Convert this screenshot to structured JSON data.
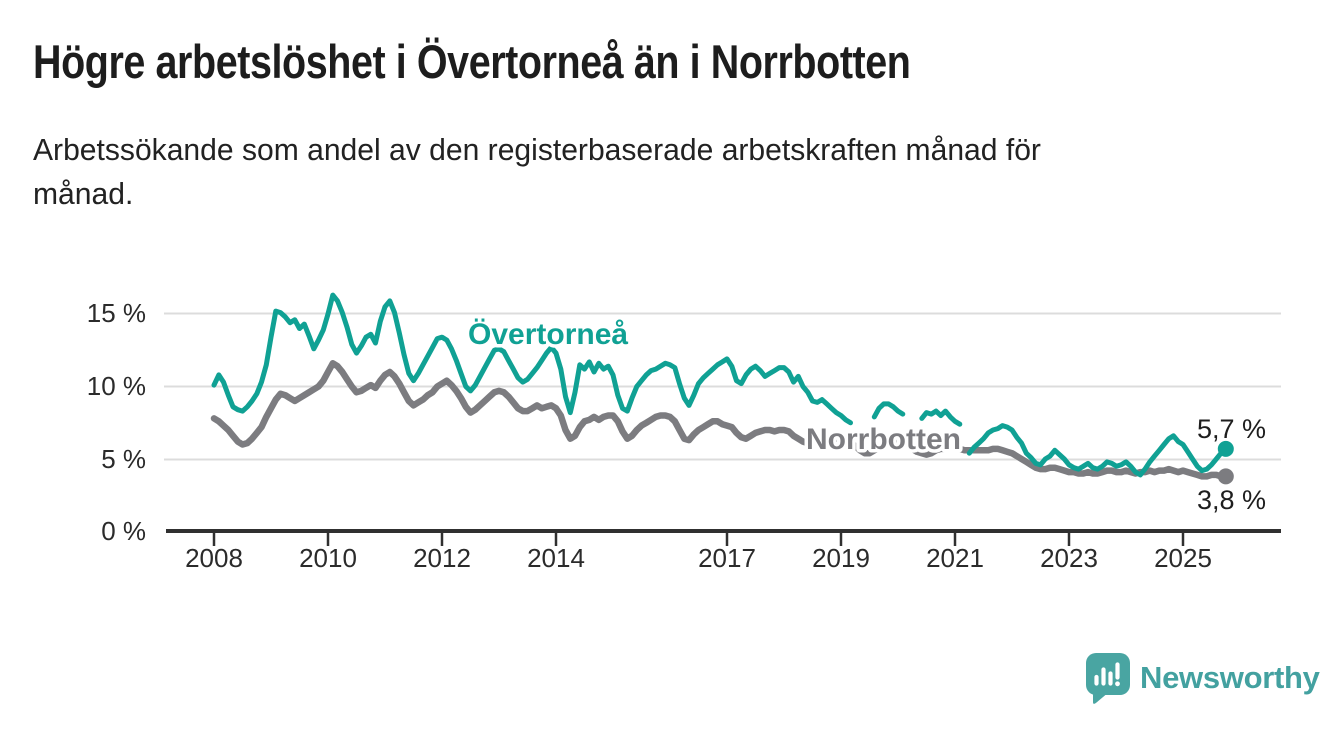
{
  "header": {
    "title": "Högre arbetslöshet i Övertorneå än i Norrbotten",
    "subtitle_line1": "Arbetssökande som andel av den registerbaserade arbetskraften månad för",
    "subtitle_line2": "månad."
  },
  "footer": {
    "brand": "Newsworthy",
    "brand_color": "#43a1a0",
    "logo_bubble_color": "#49a5a2"
  },
  "chart_data": {
    "type": "line",
    "title": "Högre arbetslöshet i Övertorneå än i Norrbotten",
    "subtitle": "Arbetssökande som andel av den registerbaserade arbetskraften månad för månad.",
    "unit": "%",
    "frequency": "monthly",
    "x_start": "2008-01",
    "x_end": "2025-10",
    "ylim": [
      0,
      17
    ],
    "grid": "horizontal",
    "y_tick_labels": [
      "15 %",
      "10 %",
      "5 %",
      "0 %"
    ],
    "x_tick_labels": [
      "2008",
      "2010",
      "2012",
      "2014",
      "2017",
      "2019",
      "2021",
      "2023",
      "2025"
    ],
    "series": [
      {
        "name": "Övertorneå",
        "color": "#10a194",
        "end_label": "5,7 %",
        "end_value": 5.7,
        "values": [
          10.1,
          10.8,
          10.3,
          9.4,
          8.6,
          8.4,
          8.3,
          8.6,
          9.0,
          9.5,
          10.3,
          11.5,
          13.4,
          15.2,
          15.1,
          14.8,
          14.4,
          14.6,
          14.0,
          14.3,
          13.5,
          12.6,
          13.2,
          13.9,
          15.0,
          16.3,
          15.9,
          15.1,
          14.1,
          12.9,
          12.3,
          12.8,
          13.4,
          13.6,
          13.0,
          14.5,
          15.5,
          15.9,
          15.1,
          13.7,
          12.2,
          10.9,
          10.4,
          10.9,
          11.5,
          12.1,
          12.7,
          13.3,
          13.4,
          13.2,
          12.6,
          11.8,
          10.9,
          10.0,
          9.7,
          10.1,
          10.7,
          11.3,
          11.9,
          12.5,
          12.6,
          12.4,
          11.8,
          11.2,
          10.6,
          10.3,
          10.5,
          10.9,
          11.3,
          11.8,
          12.3,
          12.7,
          12.3,
          11.2,
          9.3,
          8.2,
          9.6,
          11.5,
          11.2,
          11.7,
          11.0,
          11.6,
          11.2,
          11.4,
          10.8,
          9.4,
          8.5,
          8.3,
          9.2,
          10.0,
          10.4,
          10.8,
          11.1,
          11.2,
          11.4,
          11.6,
          11.5,
          11.3,
          10.2,
          9.2,
          8.7,
          9.4,
          10.2,
          10.6,
          10.9,
          11.2,
          11.5,
          11.7,
          11.9,
          11.4,
          10.4,
          10.2,
          10.8,
          11.2,
          11.4,
          11.1,
          10.7,
          10.9,
          11.1,
          11.3,
          11.3,
          11.0,
          10.3,
          10.7,
          10.0,
          9.6,
          9.0,
          8.9,
          9.1,
          8.8,
          8.5,
          8.2,
          8.0,
          7.7,
          7.5,
          null,
          null,
          null,
          null,
          7.9,
          8.5,
          8.8,
          8.8,
          8.6,
          8.3,
          8.1,
          null,
          null,
          null,
          7.8,
          8.2,
          8.1,
          8.3,
          8.0,
          8.3,
          7.9,
          7.6,
          7.4,
          null,
          5.4,
          5.8,
          6.1,
          6.4,
          6.8,
          7.0,
          7.1,
          7.3,
          7.2,
          7.0,
          6.5,
          6.1,
          5.4,
          5.1,
          4.7,
          4.6,
          5.0,
          5.2,
          5.6,
          5.3,
          5.0,
          4.6,
          4.4,
          4.3,
          4.5,
          4.7,
          4.4,
          4.3,
          4.5,
          4.8,
          4.7,
          4.5,
          4.6,
          4.8,
          4.5,
          4.1,
          3.9,
          4.3,
          4.8,
          5.2,
          5.6,
          6.0,
          6.4,
          6.6,
          6.2,
          6.0,
          5.5,
          5.0,
          4.5,
          4.2,
          4.3,
          4.6,
          5.0,
          5.4,
          5.7
        ]
      },
      {
        "name": "Norrbotten",
        "color": "#7c7c80",
        "end_label": "3,8 %",
        "end_value": 3.8,
        "values": [
          7.8,
          7.6,
          7.3,
          7.0,
          6.6,
          6.2,
          6.0,
          6.1,
          6.4,
          6.8,
          7.2,
          7.9,
          8.5,
          9.1,
          9.5,
          9.4,
          9.2,
          9.0,
          9.2,
          9.4,
          9.6,
          9.8,
          10.0,
          10.4,
          11.0,
          11.6,
          11.4,
          11.0,
          10.5,
          10.0,
          9.6,
          9.7,
          9.9,
          10.1,
          9.9,
          10.4,
          10.8,
          11.0,
          10.7,
          10.2,
          9.6,
          9.0,
          8.7,
          8.9,
          9.1,
          9.4,
          9.6,
          10.0,
          10.2,
          10.4,
          10.1,
          9.7,
          9.2,
          8.6,
          8.2,
          8.4,
          8.7,
          9.0,
          9.3,
          9.6,
          9.7,
          9.6,
          9.3,
          8.9,
          8.5,
          8.3,
          8.3,
          8.5,
          8.7,
          8.5,
          8.6,
          8.7,
          8.5,
          8.0,
          7.0,
          6.4,
          6.6,
          7.2,
          7.6,
          7.7,
          7.9,
          7.7,
          7.9,
          8.0,
          8.0,
          7.6,
          6.9,
          6.4,
          6.6,
          7.0,
          7.3,
          7.5,
          7.7,
          7.9,
          8.0,
          8.0,
          7.9,
          7.6,
          7.0,
          6.4,
          6.3,
          6.7,
          7.0,
          7.2,
          7.4,
          7.6,
          7.6,
          7.4,
          7.3,
          7.2,
          6.8,
          6.5,
          6.4,
          6.6,
          6.8,
          6.9,
          7.0,
          7.0,
          6.9,
          7.0,
          7.0,
          6.9,
          6.6,
          6.4,
          6.2,
          6.1,
          6.0,
          6.1,
          6.2,
          6.3,
          6.3,
          6.4,
          6.4,
          6.3,
          6.1,
          5.9,
          5.6,
          5.4,
          5.4,
          5.6,
          5.8,
          6.0,
          6.1,
          6.2,
          6.2,
          6.1,
          5.9,
          5.7,
          5.5,
          5.4,
          5.3,
          5.4,
          5.6,
          5.7,
          5.7,
          5.8,
          5.8,
          5.7,
          5.6,
          5.6,
          5.6,
          5.6,
          5.6,
          5.6,
          5.7,
          5.7,
          5.6,
          5.5,
          5.4,
          5.2,
          5.0,
          4.8,
          4.6,
          4.4,
          4.3,
          4.3,
          4.4,
          4.4,
          4.3,
          4.2,
          4.1,
          4.1,
          4.0,
          4.0,
          4.1,
          4.0,
          4.0,
          4.1,
          4.2,
          4.2,
          4.1,
          4.1,
          4.2,
          4.1,
          4.0,
          4.1,
          4.1,
          4.2,
          4.1,
          4.2,
          4.2,
          4.3,
          4.2,
          4.1,
          4.2,
          4.1,
          4.0,
          3.9,
          3.8,
          3.8,
          3.9,
          3.9,
          3.8,
          3.8
        ]
      }
    ]
  }
}
